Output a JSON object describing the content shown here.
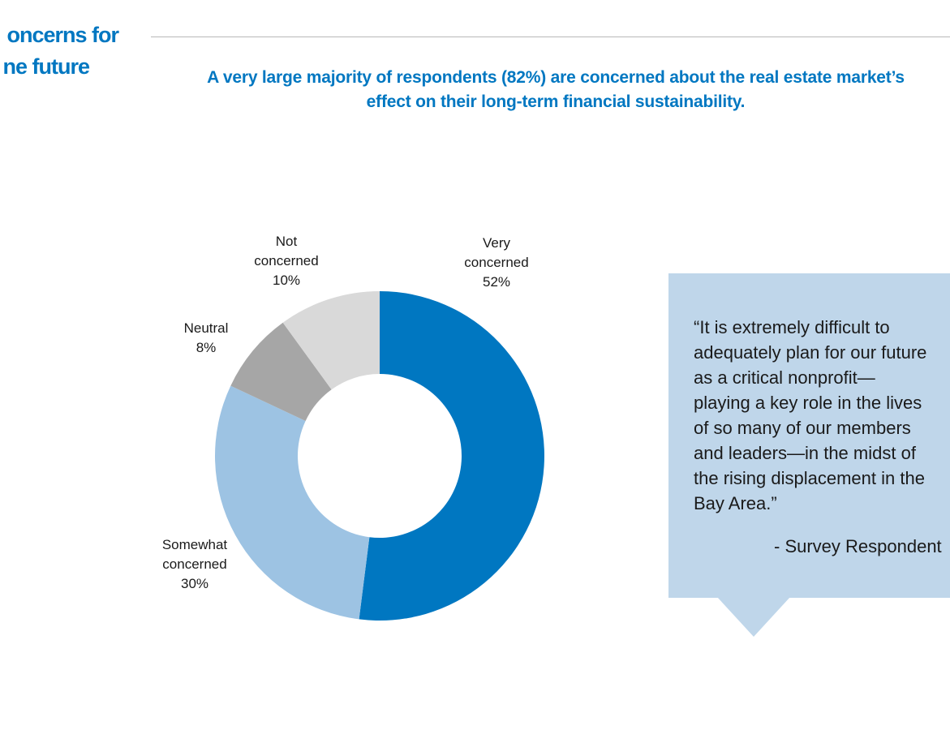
{
  "section_title": {
    "line1": "oncerns for",
    "line2": "ne future"
  },
  "headline": "A very large majority of respondents (82%) are concerned about the real estate market’s effect on their long-term financial sustainability.",
  "chart_data": {
    "type": "pie",
    "donut": true,
    "title": "",
    "slices": [
      {
        "label": "Very concerned",
        "value": 52,
        "display": "52%",
        "color": "#0077c1"
      },
      {
        "label": "Somewhat concerned",
        "value": 30,
        "display": "30%",
        "color": "#9dc3e3"
      },
      {
        "label": "Neutral",
        "value": 8,
        "display": "8%",
        "color": "#a6a6a6"
      },
      {
        "label": "Not concerned",
        "value": 10,
        "display": "10%",
        "color": "#d9d9d9"
      }
    ]
  },
  "quote": {
    "text": "“It is extremely difficult to\nadequately plan for our future\nas a critical nonprofit—\nplaying a key role in the lives\nof so many of our members\nand leaders—in the midst of\nthe rising displacement in the\nBay Area.”",
    "attribution": "- Survey Respondent"
  }
}
